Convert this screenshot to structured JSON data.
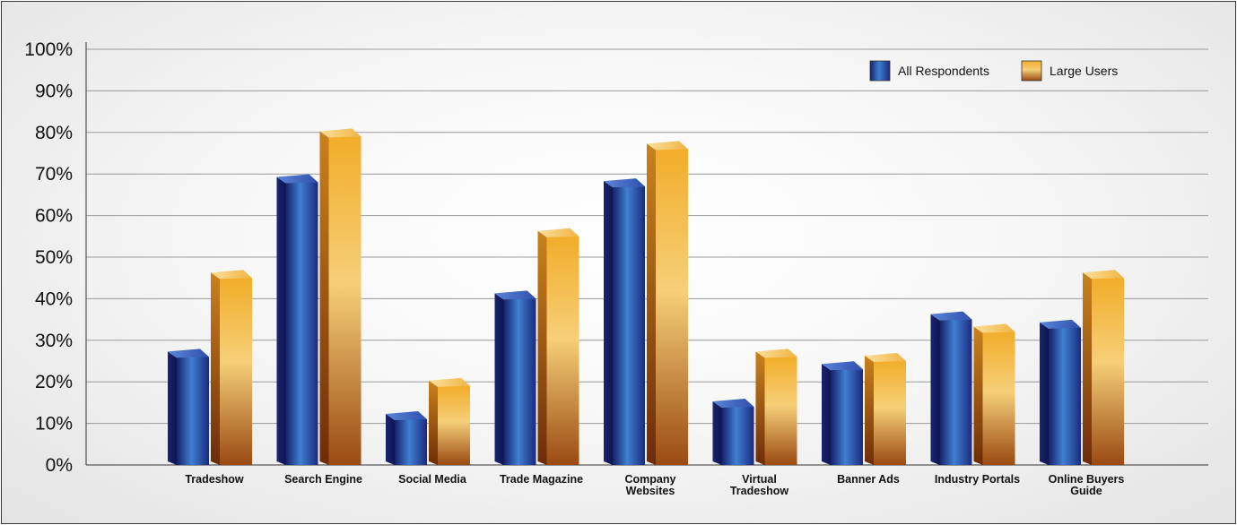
{
  "chart_data": {
    "type": "bar",
    "categories": [
      [
        "Tradeshow"
      ],
      [
        "Search Engine"
      ],
      [
        "Social Media"
      ],
      [
        "Trade Magazine"
      ],
      [
        "Company",
        "Websites"
      ],
      [
        "Virtual",
        "Tradeshow"
      ],
      [
        "Banner Ads"
      ],
      [
        "Industry Portals"
      ],
      [
        "Online Buyers",
        "Guide"
      ]
    ],
    "series": [
      {
        "name": "All Respondents",
        "values": [
          26,
          68,
          11,
          40,
          67,
          14,
          23,
          35,
          33
        ],
        "color": "#2b3f94"
      },
      {
        "name": "Large Users",
        "values": [
          45,
          79,
          19,
          55,
          76,
          26,
          25,
          32,
          45
        ],
        "color": "#eaa52a"
      }
    ],
    "ylim": [
      0,
      100
    ],
    "y_ticks": [
      "0%",
      "10%",
      "20%",
      "30%",
      "40%",
      "50%",
      "60%",
      "70%",
      "80%",
      "90%",
      "100%"
    ],
    "grid": true,
    "legend_position": "top-right"
  }
}
